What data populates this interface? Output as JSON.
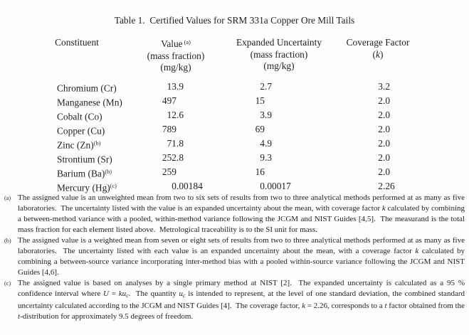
{
  "title": "Table 1.  Certified Values for SRM 331a Copper Ore Mill Tails",
  "table": {
    "headers": {
      "constituent": "Constituent",
      "value": {
        "line1": "Value",
        "sup": "(a)",
        "line2": "(mass fraction)",
        "line3": "(mg/kg)"
      },
      "uncertainty": {
        "line1": "Expanded Uncertainty",
        "line2": "(mass fraction)",
        "line3": "(mg/kg)"
      },
      "coverage": {
        "line1": "Coverage Factor",
        "line2_segments": [
          "(",
          {
            "t": "k",
            "i": true
          },
          ")"
        ]
      }
    },
    "rows": [
      {
        "constituent": "Chromium (Cr)",
        "sup": "",
        "value": "13.9",
        "uncertainty": "2.7",
        "coverage_factor": "3.2"
      },
      {
        "constituent": "Manganese (Mn)",
        "sup": "",
        "value": "497",
        "uncertainty": "15",
        "coverage_factor": "2.0"
      },
      {
        "constituent": "Cobalt (Co)",
        "sup": "",
        "value": "12.6",
        "uncertainty": "3.9",
        "coverage_factor": "2.0"
      },
      {
        "constituent": "Copper (Cu)",
        "sup": "",
        "value": "789",
        "uncertainty": "69",
        "coverage_factor": "2.0"
      },
      {
        "constituent": "Zinc (Zn)",
        "sup": "(b)",
        "value": "71.8",
        "uncertainty": "4.9",
        "coverage_factor": "2.0"
      },
      {
        "constituent": "Strontium (Sr)",
        "sup": "",
        "value": "252.8",
        "uncertainty": "9.3",
        "coverage_factor": "2.0"
      },
      {
        "constituent": "Barium (Ba)",
        "sup": "(b)",
        "value": "259",
        "uncertainty": "16",
        "coverage_factor": "2.0"
      },
      {
        "constituent": "Mercury (Hg)",
        "sup": "(c)",
        "value": "0.00184",
        "uncertainty": "0.00017",
        "coverage_factor": "2.26"
      }
    ]
  },
  "footnotes": [
    {
      "marker": "(a)",
      "segments": [
        "The assigned value is an unweighted mean from two to six sets of results from two to three analytical methods performed at as many as five laboratories.  The uncertainty listed with the value is an expanded uncertainty about the mean, with coverage factor ",
        {
          "t": "k",
          "i": true
        },
        " calculated by combining a between-method variance with a pooled, within-method variance following the JCGM and NIST Guides [4,5].  The measurand is the total mass fraction for each element listed above.  Metrological traceability is to the SI unit for mass."
      ]
    },
    {
      "marker": "(b)",
      "segments": [
        "The assigned value is a weighted mean from seven or eight sets of results from two to three analytical methods performed at as many as five laboratories.  The uncertainty listed with each value is an expanded uncertainty about the mean, with a coverage factor ",
        {
          "t": "k",
          "i": true
        },
        " calculated by combining a between-source variance incorporating inter-method bias with a pooled within-source variance following the JCGM and NIST Guides [4,6]."
      ]
    },
    {
      "marker": "(c)",
      "segments": [
        "The assigned value is based on analyses by a single primary method at NIST [2].  The expanded uncertainty is calculated as a 95 % confidence interval where ",
        {
          "t": "U",
          "i": true
        },
        " = ",
        {
          "t": "ku",
          "i": true
        },
        {
          "t": "c",
          "i": true,
          "sub": true
        },
        ".  The quantity ",
        {
          "t": "u",
          "i": true
        },
        {
          "t": "c",
          "i": true,
          "sub": true
        },
        " is intended to represent, at the level of one standard deviation, the combined standard uncertainty calculated according to the JCGM and NIST Guides [4].  The coverage factor, ",
        {
          "t": "k",
          "i": true
        },
        " = 2.26, corresponds to a ",
        {
          "t": "t",
          "i": true
        },
        " factor obtained from the ",
        {
          "t": "t",
          "i": true
        },
        "-distribution for approximately 9.5 degrees of freedom."
      ]
    }
  ]
}
